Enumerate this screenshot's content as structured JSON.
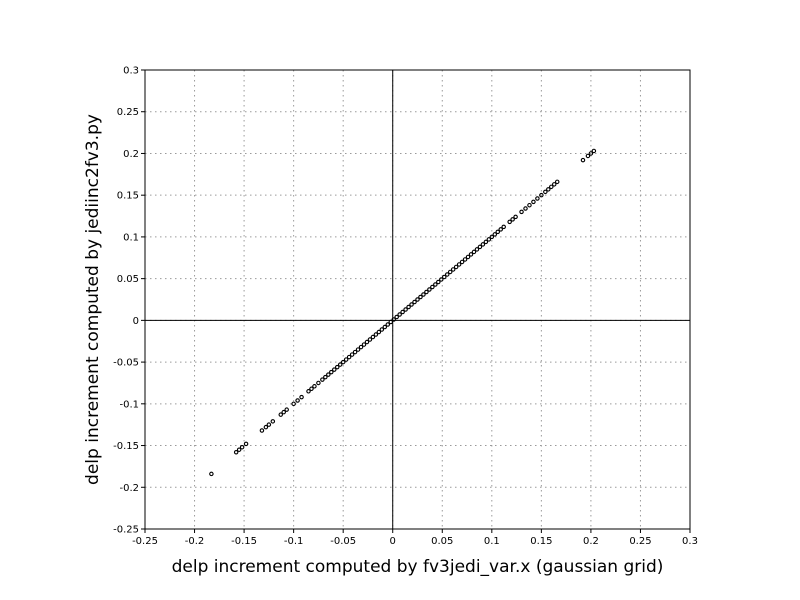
{
  "chart_data": {
    "type": "scatter",
    "title": "",
    "xlabel": "delp increment computed by fv3jedi_var.x (gaussian grid)",
    "ylabel": "delp increment computed by jediinc2fv3.py",
    "xlim": [
      -0.25,
      0.3
    ],
    "ylim": [
      -0.25,
      0.3
    ],
    "xticks": [
      "-0.25",
      "-0.2",
      "-0.15",
      "-0.1",
      "-0.05",
      "0",
      "0.05",
      "0.1",
      "0.15",
      "0.2",
      "0.25",
      "0.3"
    ],
    "yticks": [
      "-0.25",
      "-0.2",
      "-0.15",
      "-0.1",
      "-0.05",
      "0",
      "0.05",
      "0.1",
      "0.15",
      "0.2",
      "0.25",
      "0.3"
    ],
    "grid": true,
    "zero_lines": true,
    "marker_color": "#000000",
    "series": [
      {
        "values": [
          [
            -0.183,
            -0.184
          ],
          [
            -0.158,
            -0.158
          ],
          [
            -0.155,
            -0.155
          ],
          [
            -0.152,
            -0.152
          ],
          [
            -0.148,
            -0.148
          ],
          [
            -0.132,
            -0.132
          ],
          [
            -0.128,
            -0.128
          ],
          [
            -0.125,
            -0.125
          ],
          [
            -0.121,
            -0.121
          ],
          [
            -0.113,
            -0.113
          ],
          [
            -0.11,
            -0.11
          ],
          [
            -0.107,
            -0.107
          ],
          [
            -0.1,
            -0.1
          ],
          [
            -0.096,
            -0.096
          ],
          [
            -0.092,
            -0.092
          ],
          [
            -0.085,
            -0.085
          ],
          [
            -0.082,
            -0.082
          ],
          [
            -0.079,
            -0.079
          ],
          [
            -0.075,
            -0.075
          ],
          [
            -0.071,
            -0.071
          ],
          [
            -0.068,
            -0.068
          ],
          [
            -0.065,
            -0.065
          ],
          [
            -0.062,
            -0.062
          ],
          [
            -0.059,
            -0.059
          ],
          [
            -0.056,
            -0.056
          ],
          [
            -0.053,
            -0.053
          ],
          [
            -0.05,
            -0.05
          ],
          [
            -0.047,
            -0.047
          ],
          [
            -0.044,
            -0.044
          ],
          [
            -0.041,
            -0.041
          ],
          [
            -0.038,
            -0.038
          ],
          [
            -0.035,
            -0.035
          ],
          [
            -0.032,
            -0.032
          ],
          [
            -0.029,
            -0.029
          ],
          [
            -0.026,
            -0.026
          ],
          [
            -0.023,
            -0.023
          ],
          [
            -0.02,
            -0.02
          ],
          [
            -0.017,
            -0.017
          ],
          [
            -0.014,
            -0.014
          ],
          [
            -0.011,
            -0.011
          ],
          [
            -0.008,
            -0.008
          ],
          [
            -0.005,
            -0.005
          ],
          [
            -0.002,
            -0.002
          ],
          [
            0.001,
            0.001
          ],
          [
            0.004,
            0.004
          ],
          [
            0.007,
            0.007
          ],
          [
            0.01,
            0.01
          ],
          [
            0.013,
            0.013
          ],
          [
            0.016,
            0.016
          ],
          [
            0.019,
            0.019
          ],
          [
            0.022,
            0.022
          ],
          [
            0.025,
            0.025
          ],
          [
            0.028,
            0.028
          ],
          [
            0.031,
            0.031
          ],
          [
            0.034,
            0.034
          ],
          [
            0.037,
            0.037
          ],
          [
            0.04,
            0.04
          ],
          [
            0.043,
            0.043
          ],
          [
            0.046,
            0.046
          ],
          [
            0.049,
            0.049
          ],
          [
            0.052,
            0.052
          ],
          [
            0.055,
            0.055
          ],
          [
            0.058,
            0.058
          ],
          [
            0.061,
            0.061
          ],
          [
            0.064,
            0.064
          ],
          [
            0.067,
            0.067
          ],
          [
            0.07,
            0.07
          ],
          [
            0.073,
            0.073
          ],
          [
            0.076,
            0.076
          ],
          [
            0.079,
            0.079
          ],
          [
            0.082,
            0.082
          ],
          [
            0.085,
            0.085
          ],
          [
            0.088,
            0.088
          ],
          [
            0.091,
            0.091
          ],
          [
            0.094,
            0.094
          ],
          [
            0.097,
            0.097
          ],
          [
            0.1,
            0.1
          ],
          [
            0.103,
            0.103
          ],
          [
            0.106,
            0.106
          ],
          [
            0.109,
            0.109
          ],
          [
            0.112,
            0.112
          ],
          [
            0.118,
            0.118
          ],
          [
            0.121,
            0.121
          ],
          [
            0.124,
            0.124
          ],
          [
            0.13,
            0.13
          ],
          [
            0.134,
            0.134
          ],
          [
            0.138,
            0.138
          ],
          [
            0.142,
            0.142
          ],
          [
            0.146,
            0.146
          ],
          [
            0.15,
            0.15
          ],
          [
            0.154,
            0.154
          ],
          [
            0.157,
            0.157
          ],
          [
            0.16,
            0.16
          ],
          [
            0.163,
            0.163
          ],
          [
            0.166,
            0.166
          ],
          [
            0.192,
            0.192
          ],
          [
            0.197,
            0.197
          ],
          [
            0.2,
            0.2
          ],
          [
            0.203,
            0.203
          ]
        ]
      }
    ]
  }
}
